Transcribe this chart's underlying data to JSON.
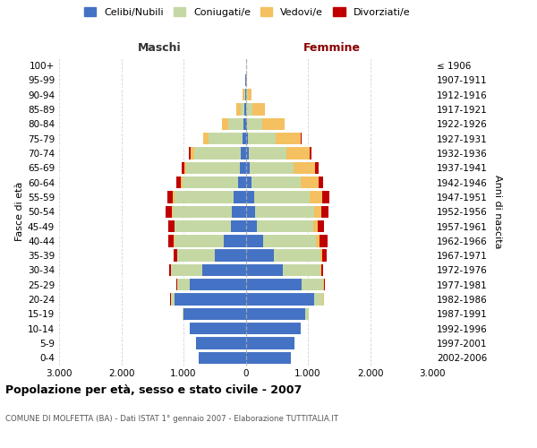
{
  "age_groups": [
    "0-4",
    "5-9",
    "10-14",
    "15-19",
    "20-24",
    "25-29",
    "30-34",
    "35-39",
    "40-44",
    "45-49",
    "50-54",
    "55-59",
    "60-64",
    "65-69",
    "70-74",
    "75-79",
    "80-84",
    "85-89",
    "90-94",
    "95-99",
    "100+"
  ],
  "birth_years": [
    "2002-2006",
    "1997-2001",
    "1992-1996",
    "1987-1991",
    "1982-1986",
    "1977-1981",
    "1972-1976",
    "1967-1971",
    "1962-1966",
    "1957-1961",
    "1952-1956",
    "1947-1951",
    "1942-1946",
    "1937-1941",
    "1932-1936",
    "1927-1931",
    "1922-1926",
    "1917-1921",
    "1912-1916",
    "1907-1911",
    "≤ 1906"
  ],
  "maschi": {
    "celibi": [
      750,
      800,
      900,
      1000,
      1150,
      900,
      700,
      500,
      350,
      240,
      220,
      200,
      120,
      100,
      80,
      50,
      30,
      15,
      5,
      2,
      0
    ],
    "coniugati": [
      0,
      0,
      0,
      10,
      50,
      200,
      500,
      600,
      800,
      900,
      950,
      950,
      900,
      850,
      750,
      550,
      250,
      70,
      20,
      5,
      0
    ],
    "vedovi": [
      0,
      0,
      0,
      0,
      5,
      5,
      5,
      5,
      8,
      10,
      15,
      20,
      30,
      40,
      60,
      80,
      100,
      60,
      20,
      5,
      0
    ],
    "divorziati": [
      0,
      0,
      0,
      5,
      5,
      10,
      30,
      60,
      80,
      90,
      100,
      90,
      60,
      40,
      30,
      10,
      5,
      5,
      2,
      0,
      0
    ]
  },
  "femmine": {
    "nubili": [
      720,
      780,
      880,
      950,
      1100,
      900,
      600,
      450,
      280,
      180,
      150,
      130,
      90,
      70,
      50,
      30,
      20,
      10,
      5,
      2,
      0
    ],
    "coniugate": [
      0,
      0,
      5,
      60,
      150,
      350,
      600,
      750,
      850,
      900,
      950,
      900,
      800,
      700,
      600,
      450,
      250,
      100,
      25,
      5,
      0
    ],
    "vedove": [
      0,
      0,
      0,
      5,
      5,
      10,
      20,
      30,
      50,
      80,
      120,
      200,
      280,
      350,
      380,
      400,
      350,
      200,
      60,
      10,
      0
    ],
    "divorziate": [
      0,
      0,
      0,
      5,
      5,
      10,
      30,
      70,
      130,
      100,
      110,
      120,
      80,
      50,
      30,
      15,
      10,
      5,
      2,
      0,
      0
    ]
  },
  "colors": {
    "celibi": "#4472C4",
    "coniugati": "#C5D8A4",
    "vedovi": "#F4C060",
    "divorziati": "#C00000"
  },
  "xlim": 3000,
  "xtick_labels": [
    "3.000",
    "2.000",
    "1.000",
    "0",
    "1.000",
    "2.000",
    "3.000"
  ],
  "xtick_vals": [
    -3000,
    -2000,
    -1000,
    0,
    1000,
    2000,
    3000
  ],
  "title": "Popolazione per età, sesso e stato civile - 2007",
  "subtitle": "COMUNE DI MOLFETTA (BA) - Dati ISTAT 1° gennaio 2007 - Elaborazione TUTTITALIA.IT",
  "label_maschi": "Maschi",
  "label_femmine": "Femmine",
  "ylabel_left": "Fasce di età",
  "ylabel_right": "Anni di nascita",
  "legend_labels": [
    "Celibi/Nubili",
    "Coniugati/e",
    "Vedovi/e",
    "Divorziati/e"
  ],
  "background_color": "#ffffff",
  "grid_color": "#cccccc"
}
